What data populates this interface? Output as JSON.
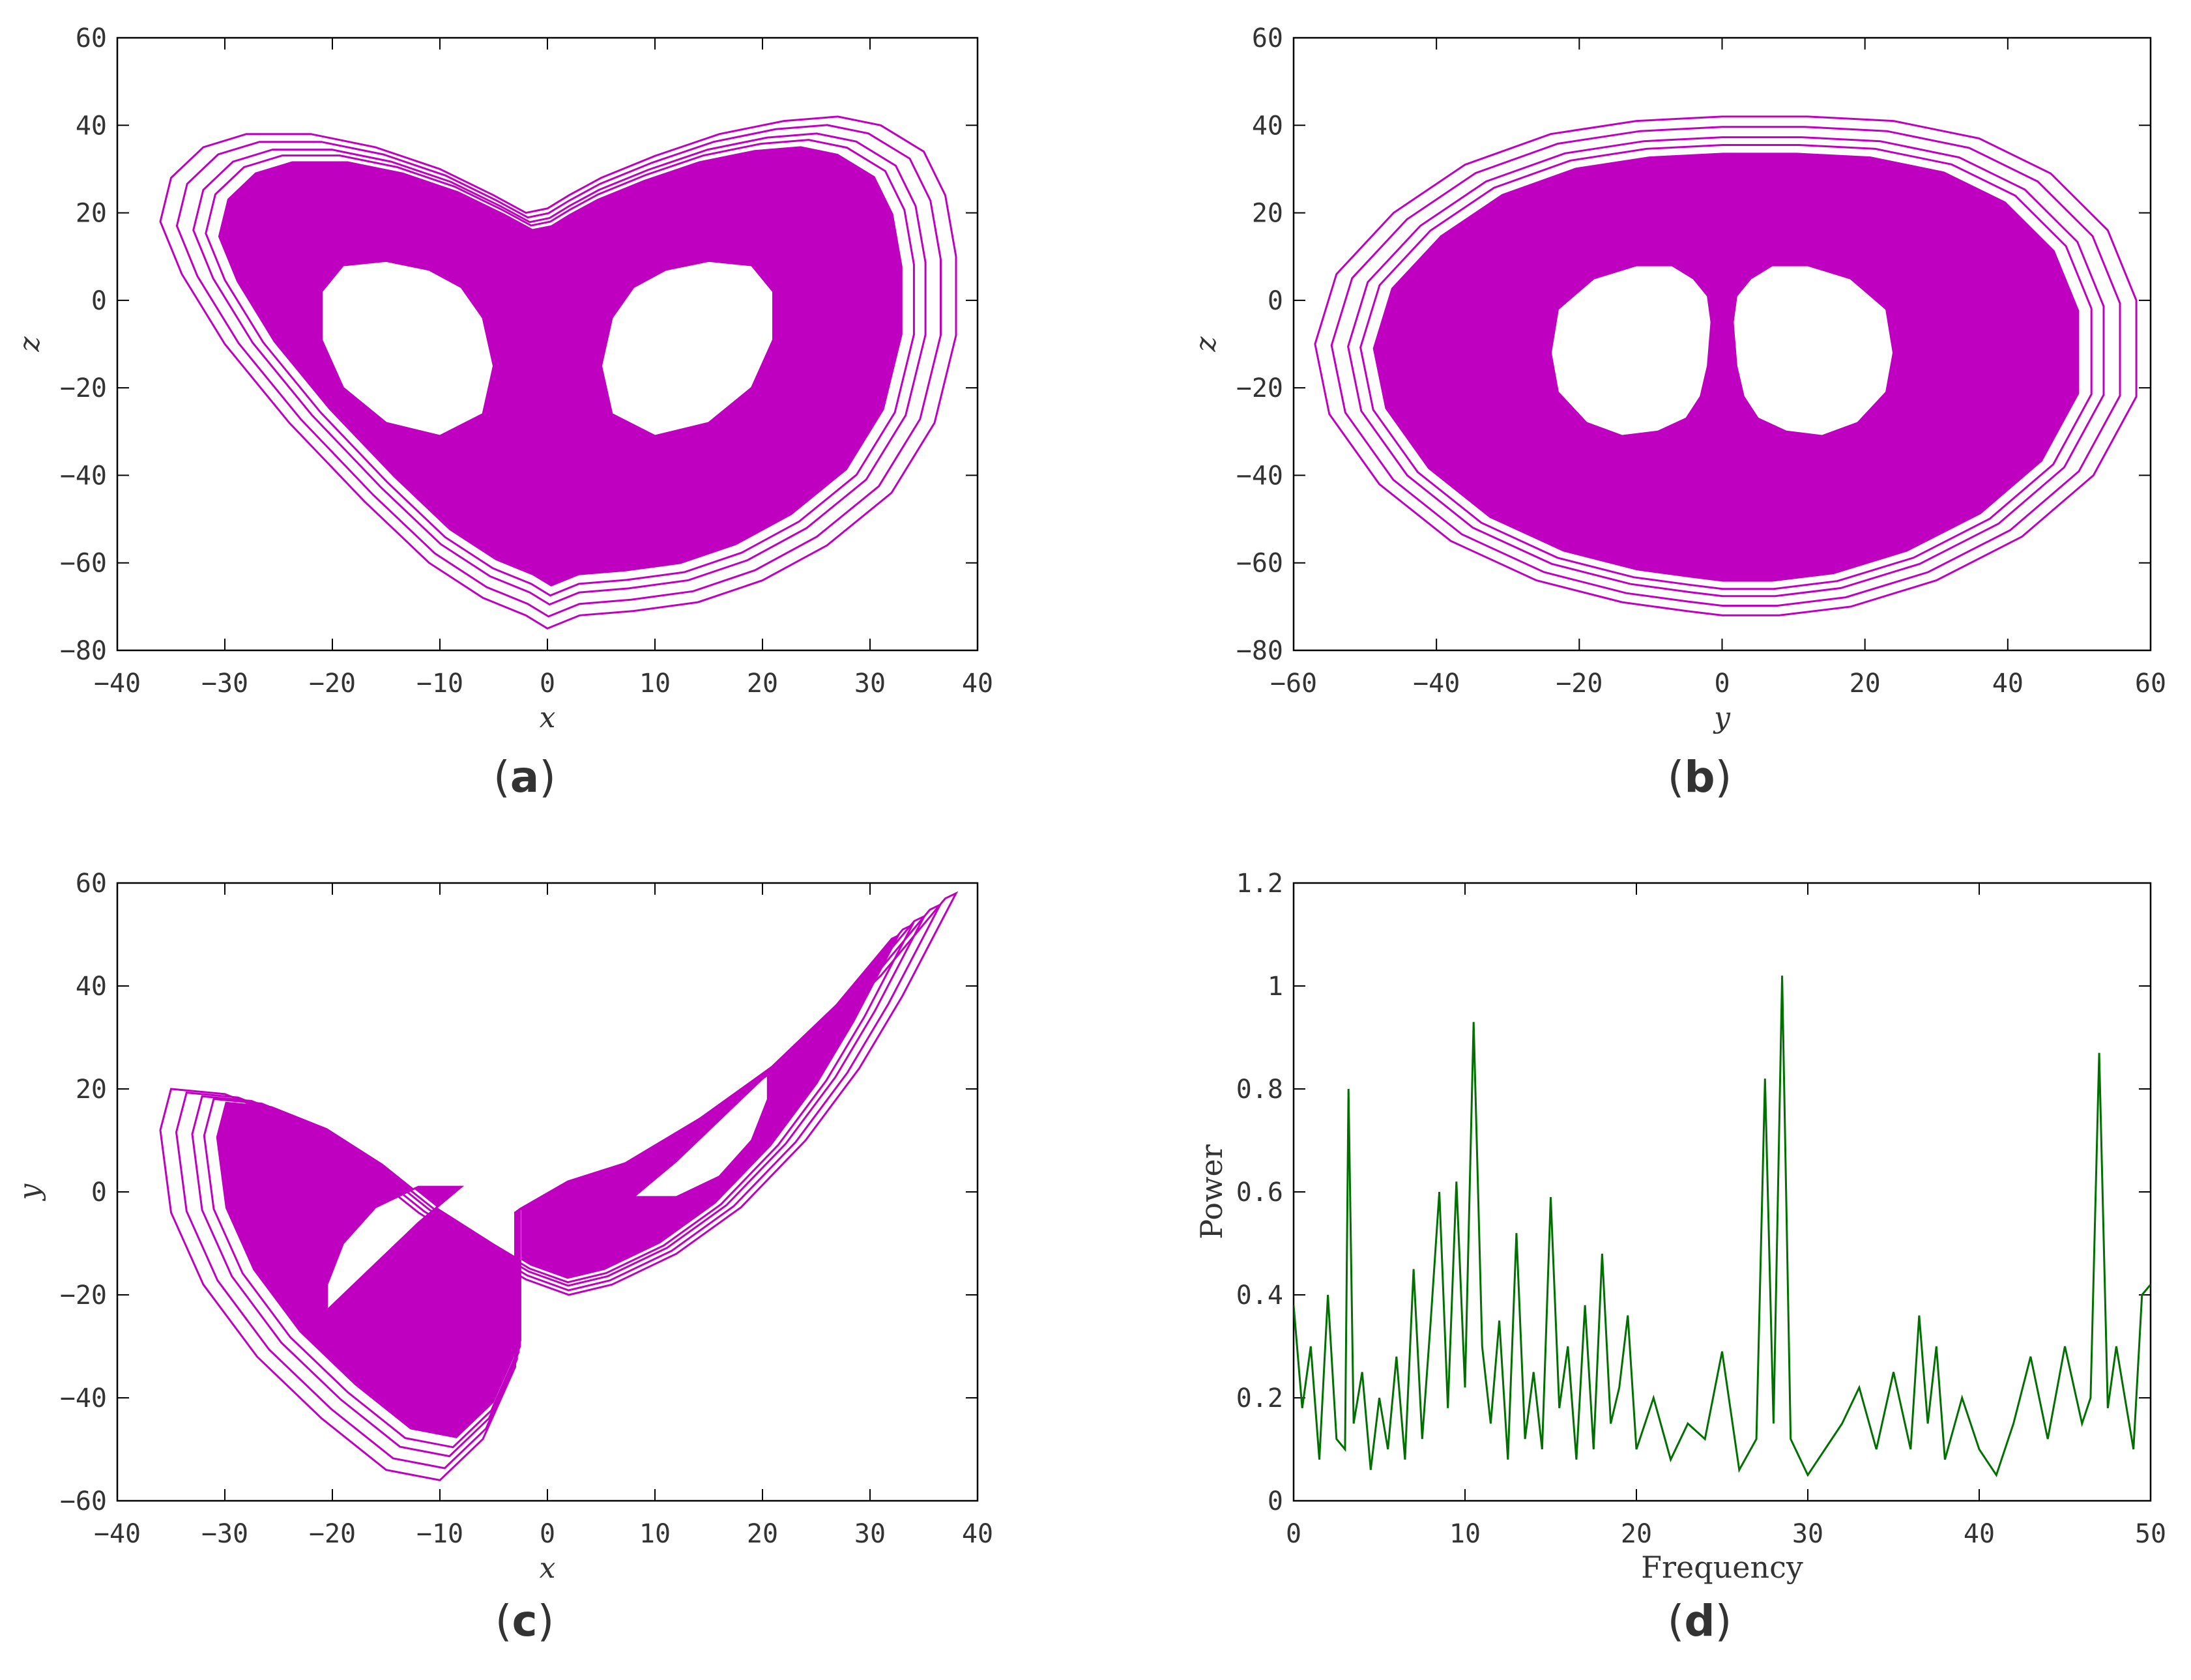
{
  "figure": {
    "panels": [
      "a",
      "b",
      "c",
      "d"
    ]
  },
  "chart_data": [
    {
      "id": "a",
      "type": "line",
      "caption": "(a)",
      "xlabel": "x",
      "ylabel": "z",
      "xlim": [
        -40,
        40
      ],
      "ylim": [
        -80,
        60
      ],
      "xticks": [
        -40,
        -30,
        -20,
        -10,
        0,
        10,
        20,
        30,
        40
      ],
      "yticks": [
        -80,
        -60,
        -40,
        -20,
        0,
        20,
        40,
        60
      ],
      "color": "#C000C0",
      "series": [
        {
          "name": "outer-loop",
          "x": [
            0,
            3,
            8,
            14,
            20,
            26,
            32,
            36,
            38,
            38,
            37,
            35,
            31,
            27,
            22,
            16,
            10,
            5,
            2,
            0,
            -2,
            -5,
            -10,
            -16,
            -22,
            -28,
            -32,
            -35,
            -36,
            -34,
            -30,
            -24,
            -17,
            -11,
            -6,
            -2,
            0
          ],
          "y": [
            -75,
            -72,
            -71,
            -69,
            -64,
            -56,
            -44,
            -28,
            -8,
            10,
            24,
            34,
            40,
            42,
            41,
            38,
            33,
            28,
            24,
            21,
            20,
            24,
            30,
            35,
            38,
            38,
            35,
            28,
            18,
            6,
            -10,
            -28,
            -46,
            -60,
            -68,
            -72,
            -75
          ]
        },
        {
          "name": "right-hole",
          "x": [
            5,
            6,
            8,
            11,
            15,
            19,
            21,
            21,
            19,
            15,
            10,
            6,
            5
          ],
          "y": [
            -15,
            -4,
            3,
            7,
            9,
            8,
            2,
            -9,
            -20,
            -28,
            -31,
            -26,
            -15
          ]
        },
        {
          "name": "left-hole",
          "x": [
            -5,
            -6,
            -8,
            -11,
            -15,
            -19,
            -21,
            -21,
            -19,
            -15,
            -10,
            -6,
            -5
          ],
          "y": [
            -15,
            -4,
            3,
            7,
            9,
            8,
            2,
            -9,
            -20,
            -28,
            -31,
            -26,
            -15
          ]
        }
      ]
    },
    {
      "id": "b",
      "type": "line",
      "caption": "(b)",
      "xlabel": "y",
      "ylabel": "z",
      "xlim": [
        -60,
        60
      ],
      "ylim": [
        -80,
        60
      ],
      "xticks": [
        -60,
        -40,
        -20,
        0,
        20,
        40,
        60
      ],
      "yticks": [
        -80,
        -60,
        -40,
        -20,
        0,
        20,
        40,
        60
      ],
      "color": "#C000C0",
      "series": [
        {
          "name": "outer-loop",
          "x": [
            0,
            8,
            18,
            30,
            42,
            52,
            58,
            58,
            54,
            46,
            36,
            24,
            12,
            0,
            -12,
            -24,
            -36,
            -46,
            -54,
            -57,
            -55,
            -48,
            -38,
            -26,
            -14,
            -5,
            0
          ],
          "y": [
            -72,
            -72,
            -70,
            -64,
            -54,
            -40,
            -22,
            0,
            16,
            29,
            37,
            41,
            42,
            42,
            41,
            38,
            31,
            20,
            6,
            -10,
            -26,
            -42,
            -55,
            -64,
            -69,
            -71,
            -72
          ]
        },
        {
          "name": "right-hole",
          "x": [
            2,
            1.5,
            2,
            4,
            7,
            12,
            18,
            23,
            24,
            23,
            19,
            14,
            9,
            5,
            3,
            2
          ],
          "y": [
            -15,
            -5,
            1,
            5,
            8,
            8,
            5,
            -2,
            -12,
            -21,
            -28,
            -31,
            -30,
            -27,
            -22,
            -15
          ]
        },
        {
          "name": "left-hole",
          "x": [
            -2,
            -1.5,
            -2,
            -4,
            -7,
            -12,
            -18,
            -23,
            -24,
            -23,
            -19,
            -14,
            -9,
            -5,
            -3,
            -2
          ],
          "y": [
            -15,
            -5,
            1,
            5,
            8,
            8,
            5,
            -2,
            -12,
            -21,
            -28,
            -31,
            -30,
            -27,
            -22,
            -15
          ]
        }
      ]
    },
    {
      "id": "c",
      "type": "line",
      "caption": "(c)",
      "xlabel": "x",
      "ylabel": "y",
      "xlim": [
        -40,
        40
      ],
      "ylim": [
        -60,
        60
      ],
      "xticks": [
        -40,
        -30,
        -20,
        -10,
        0,
        10,
        20,
        30,
        40
      ],
      "yticks": [
        -60,
        -40,
        -20,
        0,
        20,
        40,
        60
      ],
      "color": "#C000C0",
      "series": [
        {
          "name": "outer-loop",
          "x": [
            -3,
            2,
            8,
            16,
            24,
            31,
            35,
            37,
            38,
            36,
            33,
            29,
            24,
            18,
            12,
            6,
            2,
            -2,
            -6,
            -12,
            -18,
            -24,
            -30,
            -35,
            -36,
            -35,
            -32,
            -27,
            -21,
            -15,
            -10,
            -6,
            -3
          ],
          "y": [
            -4,
            2,
            6,
            16,
            28,
            42,
            52,
            57,
            58,
            50,
            38,
            24,
            10,
            -3,
            -12,
            -18,
            -20,
            -17,
            -12,
            -4,
            6,
            14,
            19,
            20,
            12,
            -4,
            -18,
            -32,
            -44,
            -54,
            -56,
            -48,
            -34
          ]
        },
        {
          "name": "upper-hole",
          "x": [
            8,
            12,
            16,
            19,
            20.5,
            20.5,
            19,
            16,
            12,
            8
          ],
          "y": [
            -1,
            6,
            14,
            20,
            23,
            18,
            10,
            3,
            -1,
            -1
          ]
        },
        {
          "name": "lower-hole",
          "x": [
            -8,
            -12,
            -16,
            -19,
            -20.5,
            -20.5,
            -19,
            -16,
            -12,
            -8
          ],
          "y": [
            1,
            -6,
            -14,
            -20,
            -23,
            -18,
            -10,
            -3,
            1,
            1
          ]
        }
      ]
    },
    {
      "id": "d",
      "type": "line",
      "caption": "(d)",
      "xlabel": "Frequency",
      "ylabel": "Power",
      "xlim": [
        0,
        50
      ],
      "ylim": [
        0,
        1.2
      ],
      "xticks": [
        0,
        10,
        20,
        30,
        40,
        50
      ],
      "yticks": [
        0,
        0.2,
        0.4,
        0.6,
        0.8,
        1,
        1.2
      ],
      "ytick_labels": [
        "0",
        "0.2",
        "0.4",
        "0.6",
        "0.8",
        "1",
        "1.2"
      ],
      "color": "#007000",
      "series": [
        {
          "name": "power-spectrum",
          "x": [
            0,
            0.5,
            1,
            1.5,
            2,
            2.5,
            3,
            3.2,
            3.5,
            4,
            4.5,
            5,
            5.5,
            6,
            6.5,
            7,
            7.5,
            8,
            8.5,
            9,
            9.5,
            10,
            10.5,
            11,
            11.5,
            12,
            12.5,
            13,
            13.5,
            14,
            14.5,
            15,
            15.5,
            16,
            16.5,
            17,
            17.5,
            18,
            18.5,
            19,
            19.5,
            20,
            21,
            22,
            23,
            24,
            25,
            26,
            27,
            27.5,
            28,
            28.5,
            29,
            30,
            31,
            32,
            33,
            34,
            35,
            36,
            36.5,
            37,
            37.5,
            38,
            39,
            40,
            41,
            42,
            43,
            44,
            45,
            46,
            46.5,
            47,
            47.5,
            48,
            49,
            49.5,
            50
          ],
          "y": [
            0.38,
            0.18,
            0.3,
            0.08,
            0.4,
            0.12,
            0.1,
            0.8,
            0.15,
            0.25,
            0.06,
            0.2,
            0.1,
            0.28,
            0.08,
            0.45,
            0.12,
            0.35,
            0.6,
            0.18,
            0.62,
            0.22,
            0.93,
            0.3,
            0.15,
            0.35,
            0.08,
            0.52,
            0.12,
            0.25,
            0.1,
            0.59,
            0.18,
            0.3,
            0.08,
            0.38,
            0.1,
            0.48,
            0.15,
            0.22,
            0.36,
            0.1,
            0.2,
            0.08,
            0.15,
            0.12,
            0.29,
            0.06,
            0.12,
            0.82,
            0.15,
            1.02,
            0.12,
            0.05,
            0.1,
            0.15,
            0.22,
            0.1,
            0.25,
            0.1,
            0.36,
            0.15,
            0.3,
            0.08,
            0.2,
            0.1,
            0.05,
            0.15,
            0.28,
            0.12,
            0.3,
            0.15,
            0.2,
            0.87,
            0.18,
            0.3,
            0.1,
            0.4,
            0.42
          ]
        }
      ]
    }
  ]
}
